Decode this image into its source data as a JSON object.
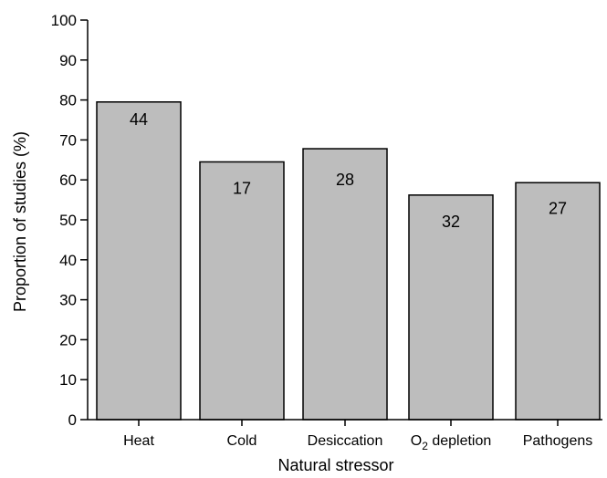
{
  "chart_data": {
    "type": "bar",
    "title": "",
    "xlabel": "Natural stressor",
    "ylabel": "Proportion of studies (%)",
    "ylim": [
      0,
      100
    ],
    "yticks": [
      0,
      10,
      20,
      30,
      40,
      50,
      60,
      70,
      80,
      90,
      100
    ],
    "grid": false,
    "bar_color": "#bdbdbd",
    "categories": [
      {
        "label": "Heat",
        "sub": ""
      },
      {
        "label": "Cold",
        "sub": ""
      },
      {
        "label": "Desiccation",
        "sub": ""
      },
      {
        "label": "O",
        "sub": "2",
        "suffix": " depletion"
      },
      {
        "label": "Pathogens",
        "sub": ""
      }
    ],
    "values": [
      79.5,
      64.5,
      67.8,
      56.2,
      59.3
    ],
    "bar_labels": [
      "44",
      "17",
      "28",
      "32",
      "27"
    ]
  }
}
